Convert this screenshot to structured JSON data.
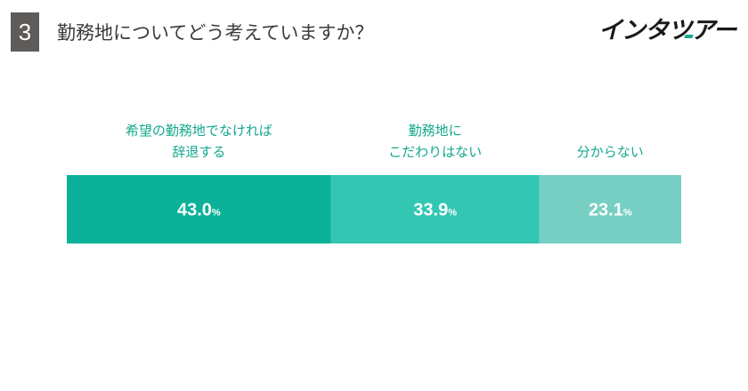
{
  "question": {
    "number": "3",
    "text": "勤務地についてどう考えていますか？"
  },
  "brand": {
    "logo_text": "インタツアー",
    "accent_color": "#16a98c"
  },
  "chart_data": {
    "type": "bar",
    "orientation": "horizontal-stacked",
    "categories": [
      "希望の勤務地でなければ\n辞退する",
      "勤務地に\nこだわりはない",
      "分からない"
    ],
    "values": [
      43.0,
      33.9,
      23.1
    ],
    "value_labels": [
      "43.0",
      "33.9",
      "23.1"
    ],
    "unit": "%",
    "colors": [
      "#0bb198",
      "#33c6b3",
      "#76cfc2"
    ],
    "label_color": "#14a88e",
    "title": "",
    "xlabel": "",
    "ylabel": ""
  }
}
